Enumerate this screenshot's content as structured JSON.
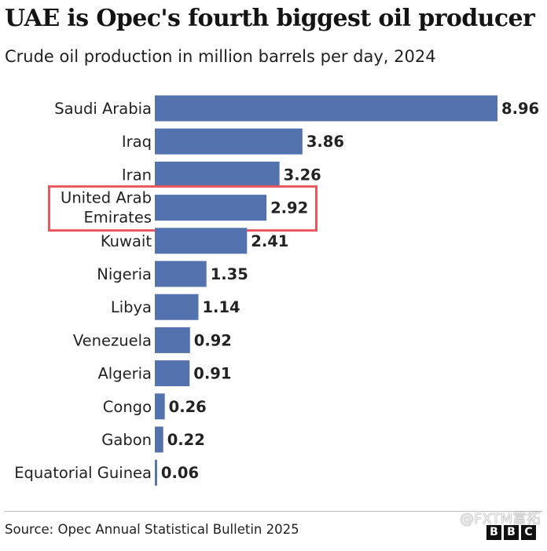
{
  "header": {
    "title": "UAE is Opec's fourth biggest oil producer",
    "subtitle": "Crude oil production in million barrels per day, 2024"
  },
  "footer": {
    "source": "Source: Opec Annual Statistical Bulletin 2025",
    "watermark": "@FXTM富拓",
    "logo_letters": [
      "B",
      "B",
      "C"
    ]
  },
  "colors": {
    "bar": "#5472ad",
    "highlight_box": "#e9575d",
    "text": "#222222"
  },
  "chart_data": {
    "type": "bar",
    "orientation": "horizontal",
    "title": "UAE is Opec's fourth biggest oil producer",
    "subtitle": "Crude oil production in million barrels per day, 2024",
    "categories": [
      [
        "Saudi Arabia"
      ],
      [
        "Iraq"
      ],
      [
        "Iran"
      ],
      [
        "United Arab",
        "Emirates"
      ],
      [
        "Kuwait"
      ],
      [
        "Nigeria"
      ],
      [
        "Libya"
      ],
      [
        "Venezuela"
      ],
      [
        "Algeria"
      ],
      [
        "Congo"
      ],
      [
        "Gabon"
      ],
      [
        "Equatorial Guinea"
      ]
    ],
    "values": [
      8.96,
      3.86,
      3.26,
      2.92,
      2.41,
      1.35,
      1.14,
      0.92,
      0.91,
      0.26,
      0.22,
      0.06
    ],
    "value_labels": [
      "8.96",
      "3.86",
      "3.26",
      "2.92",
      "2.41",
      "1.35",
      "1.14",
      "0.92",
      "0.91",
      "0.26",
      "0.22",
      "0.06"
    ],
    "highlighted_category": "United Arab Emirates",
    "xlim": [
      0,
      8.96
    ],
    "grid": false,
    "legend": "none"
  }
}
